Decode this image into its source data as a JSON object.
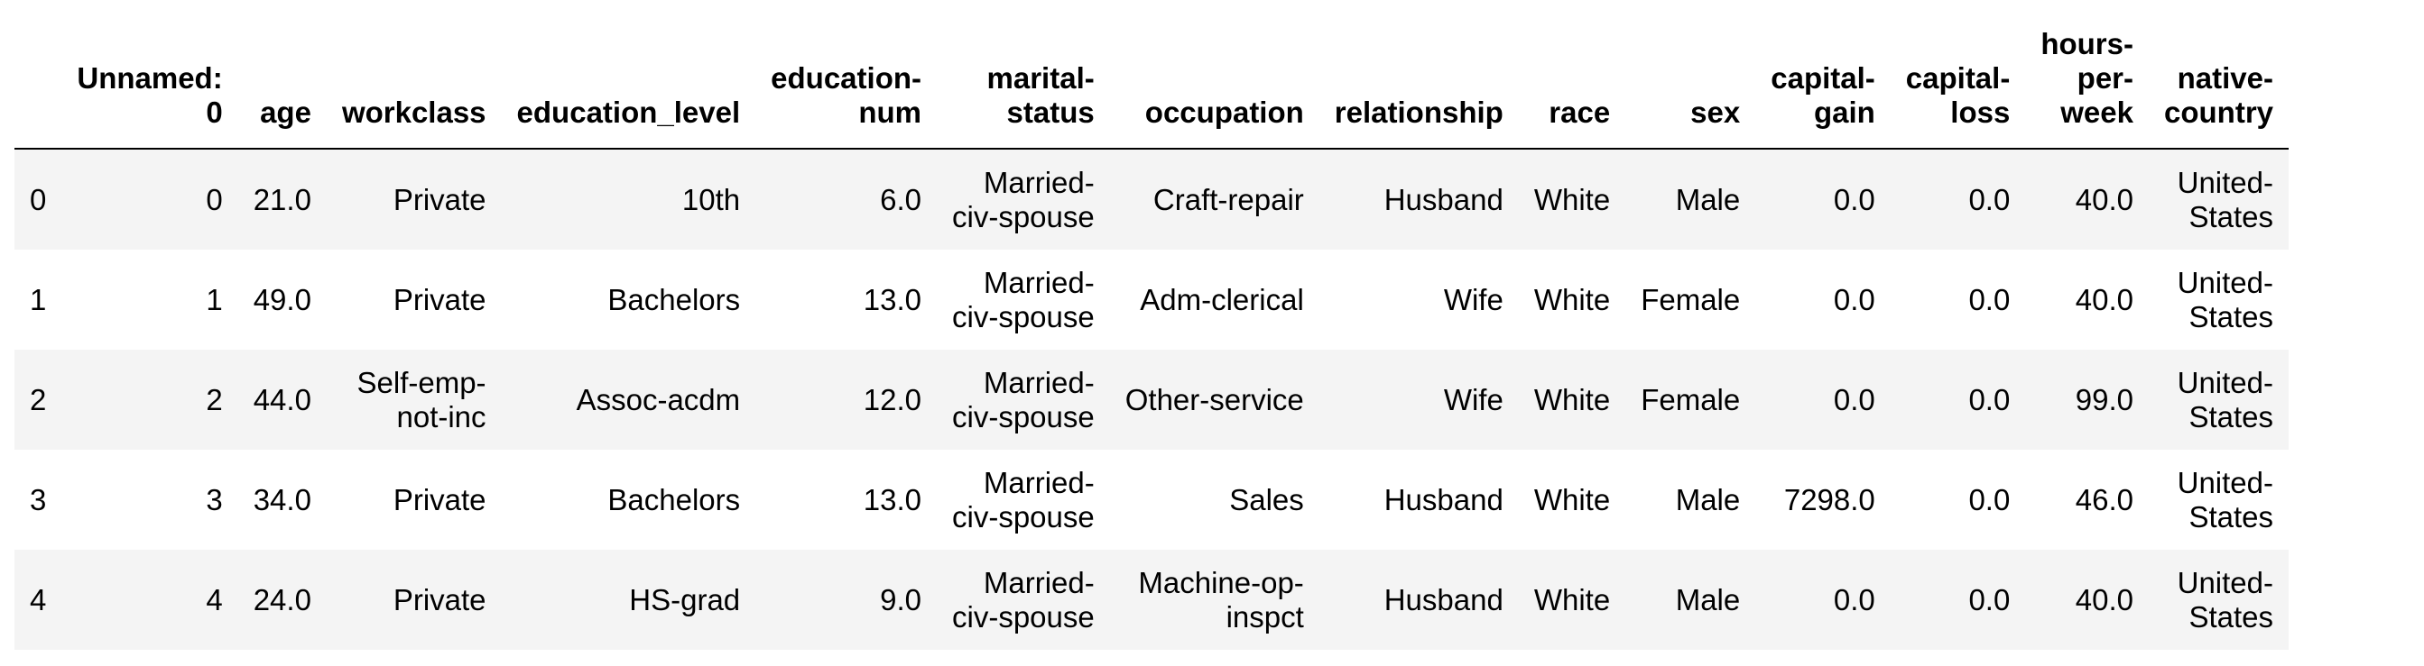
{
  "table": {
    "columns": [
      "",
      "Unnamed: 0",
      "age",
      "workclass",
      "education_level",
      "education-num",
      "marital-status",
      "occupation",
      "relationship",
      "race",
      "sex",
      "capital-gain",
      "capital-loss",
      "hours-per-week",
      "native-country"
    ],
    "header_lines": [
      [
        ""
      ],
      [
        "Unnamed:",
        "0"
      ],
      [
        "age"
      ],
      [
        "workclass"
      ],
      [
        "education_level"
      ],
      [
        "education-",
        "num"
      ],
      [
        "marital-",
        "status"
      ],
      [
        "occupation"
      ],
      [
        "relationship"
      ],
      [
        "race"
      ],
      [
        "sex"
      ],
      [
        "capital-",
        "gain"
      ],
      [
        "capital-",
        "loss"
      ],
      [
        "hours-",
        "per-",
        "week"
      ],
      [
        "native-",
        "country"
      ]
    ],
    "rows": [
      [
        [
          "0"
        ],
        [
          "0"
        ],
        [
          "21.0"
        ],
        [
          "Private"
        ],
        [
          "10th"
        ],
        [
          "6.0"
        ],
        [
          "Married-",
          "civ-spouse"
        ],
        [
          "Craft-repair"
        ],
        [
          "Husband"
        ],
        [
          "White"
        ],
        [
          "Male"
        ],
        [
          "0.0"
        ],
        [
          "0.0"
        ],
        [
          "40.0"
        ],
        [
          "United-",
          "States"
        ]
      ],
      [
        [
          "1"
        ],
        [
          "1"
        ],
        [
          "49.0"
        ],
        [
          "Private"
        ],
        [
          "Bachelors"
        ],
        [
          "13.0"
        ],
        [
          "Married-",
          "civ-spouse"
        ],
        [
          "Adm-clerical"
        ],
        [
          "Wife"
        ],
        [
          "White"
        ],
        [
          "Female"
        ],
        [
          "0.0"
        ],
        [
          "0.0"
        ],
        [
          "40.0"
        ],
        [
          "United-",
          "States"
        ]
      ],
      [
        [
          "2"
        ],
        [
          "2"
        ],
        [
          "44.0"
        ],
        [
          "Self-emp-",
          "not-inc"
        ],
        [
          "Assoc-acdm"
        ],
        [
          "12.0"
        ],
        [
          "Married-",
          "civ-spouse"
        ],
        [
          "Other-service"
        ],
        [
          "Wife"
        ],
        [
          "White"
        ],
        [
          "Female"
        ],
        [
          "0.0"
        ],
        [
          "0.0"
        ],
        [
          "99.0"
        ],
        [
          "United-",
          "States"
        ]
      ],
      [
        [
          "3"
        ],
        [
          "3"
        ],
        [
          "34.0"
        ],
        [
          "Private"
        ],
        [
          "Bachelors"
        ],
        [
          "13.0"
        ],
        [
          "Married-",
          "civ-spouse"
        ],
        [
          "Sales"
        ],
        [
          "Husband"
        ],
        [
          "White"
        ],
        [
          "Male"
        ],
        [
          "7298.0"
        ],
        [
          "0.0"
        ],
        [
          "46.0"
        ],
        [
          "United-",
          "States"
        ]
      ],
      [
        [
          "4"
        ],
        [
          "4"
        ],
        [
          "24.0"
        ],
        [
          "Private"
        ],
        [
          "HS-grad"
        ],
        [
          "9.0"
        ],
        [
          "Married-",
          "civ-spouse"
        ],
        [
          "Machine-op-",
          "inspct"
        ],
        [
          "Husband"
        ],
        [
          "White"
        ],
        [
          "Male"
        ],
        [
          "0.0"
        ],
        [
          "0.0"
        ],
        [
          "40.0"
        ],
        [
          "United-",
          "States"
        ]
      ]
    ]
  },
  "colors": {
    "stripe": "#f4f4f4",
    "background": "#ffffff",
    "text": "#000000",
    "rule": "#000000"
  }
}
